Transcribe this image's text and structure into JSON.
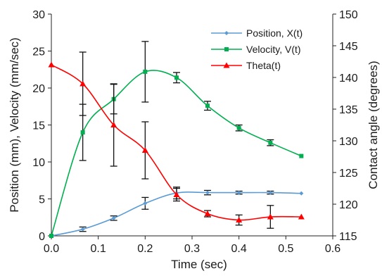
{
  "chart_data": {
    "type": "line",
    "xlabel": "Time (sec)",
    "ylabel_left": "Position (mm), Velocity (mm/sec)",
    "ylabel_right": "Contact angle (degrees)",
    "x_ticks": [
      "0.0",
      "0.1",
      "0.2",
      "0.3",
      "0.4",
      "0.5",
      "0.6"
    ],
    "y_left_ticks": [
      "0",
      "5",
      "10",
      "15",
      "20",
      "25",
      "30"
    ],
    "y_right_ticks": [
      "115",
      "120",
      "125",
      "130",
      "135",
      "140",
      "145",
      "150"
    ],
    "xlim": [
      0,
      0.6
    ],
    "ylim_left": [
      0,
      30
    ],
    "ylim_right": [
      115,
      150
    ],
    "grid": false,
    "legend_position": "top-right",
    "series": [
      {
        "name": "Position, X(t)",
        "axis": "left",
        "color": "#5b9bd5",
        "marker": "diamond",
        "x": [
          0,
          0.067,
          0.133,
          0.2,
          0.267,
          0.333,
          0.4,
          0.467,
          0.533
        ],
        "y": [
          0,
          0.9,
          2.4,
          4.4,
          5.8,
          5.85,
          5.85,
          5.85,
          5.75
        ],
        "err": [
          0,
          0.3,
          0.3,
          0.8,
          0.8,
          0.3,
          0.2,
          0.2,
          0
        ]
      },
      {
        "name": "Velocity, V(t)",
        "axis": "left",
        "color": "#00b050",
        "marker": "square",
        "x": [
          0,
          0.067,
          0.133,
          0.2,
          0.267,
          0.333,
          0.4,
          0.467,
          0.533
        ],
        "y": [
          0,
          14,
          18.5,
          22.2,
          21.4,
          17.6,
          14.6,
          12.6,
          10.8
        ],
        "err": [
          0,
          3.8,
          2.0,
          4.1,
          0.7,
          0.6,
          0.4,
          0.4,
          0
        ]
      },
      {
        "name": "Theta(t)",
        "axis": "right",
        "color": "#ff0000",
        "marker": "triangle",
        "x": [
          0,
          0.067,
          0.133,
          0.2,
          0.267,
          0.333,
          0.4,
          0.467,
          0.533
        ],
        "y": [
          142,
          139,
          132.5,
          128.5,
          121.5,
          118.5,
          117.5,
          118,
          118
        ],
        "err": [
          0,
          5,
          6.5,
          4.5,
          1,
          0.5,
          0.8,
          1.8,
          0
        ]
      }
    ]
  }
}
